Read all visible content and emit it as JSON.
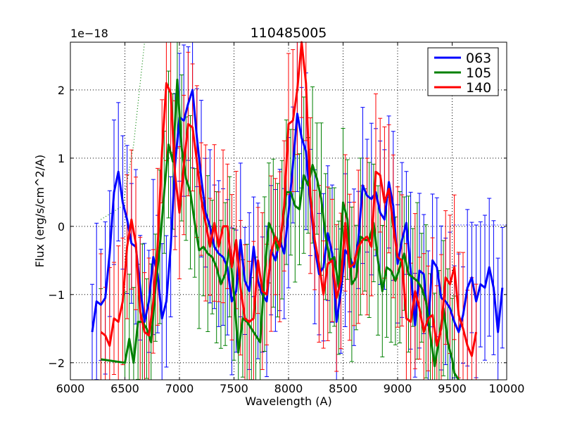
{
  "chart_data": {
    "type": "line",
    "title": "110485005",
    "xlabel": "Wavelength (A)",
    "ylabel": "Flux (erg/s/cm^2/A)",
    "y_scale_label": "1e−18",
    "xlim": [
      6000,
      10000
    ],
    "ylim": [
      -2.25,
      2.7
    ],
    "xticks": [
      6000,
      6500,
      7000,
      7500,
      8000,
      8500,
      9000,
      9500,
      10000
    ],
    "yticks": [
      -2,
      -1,
      0,
      1,
      2
    ],
    "ytick_labels": [
      "−2",
      "−1",
      "0",
      "1",
      "2"
    ],
    "grid": true,
    "legend_position": "top-right",
    "series": [
      {
        "name": "063",
        "color": "#0000ff",
        "points": [
          [
            6200,
            -1.55
          ],
          [
            6240,
            -1.1
          ],
          [
            6280,
            -1.15
          ],
          [
            6320,
            -1.05
          ],
          [
            6360,
            -0.4
          ],
          [
            6400,
            0.5
          ],
          [
            6440,
            0.8
          ],
          [
            6480,
            0.35
          ],
          [
            6520,
            0.1
          ],
          [
            6560,
            -0.25
          ],
          [
            6600,
            -0.3
          ],
          [
            6640,
            -0.9
          ],
          [
            6680,
            -1.4
          ],
          [
            6720,
            -1.1
          ],
          [
            6760,
            -0.45
          ],
          [
            6800,
            -0.7
          ],
          [
            6840,
            -1.35
          ],
          [
            6880,
            -1.1
          ],
          [
            6920,
            -0.3
          ],
          [
            6960,
            0.9
          ],
          [
            7000,
            1.6
          ],
          [
            7040,
            1.55
          ],
          [
            7080,
            1.8
          ],
          [
            7120,
            2.0
          ],
          [
            7160,
            1.3
          ],
          [
            7200,
            0.7
          ],
          [
            7240,
            0.2
          ],
          [
            7280,
            0.0
          ],
          [
            7320,
            -0.3
          ],
          [
            7360,
            -0.4
          ],
          [
            7400,
            -0.45
          ],
          [
            7440,
            -0.6
          ],
          [
            7480,
            -1.1
          ],
          [
            7520,
            -0.95
          ],
          [
            7560,
            -0.2
          ],
          [
            7600,
            -0.8
          ],
          [
            7640,
            -0.95
          ],
          [
            7680,
            -0.3
          ],
          [
            7720,
            -0.8
          ],
          [
            7760,
            -1.0
          ],
          [
            7800,
            -1.1
          ],
          [
            7840,
            -0.35
          ],
          [
            7880,
            -0.5
          ],
          [
            7920,
            -0.2
          ],
          [
            7960,
            -0.4
          ],
          [
            8000,
            0.2
          ],
          [
            8040,
            0.9
          ],
          [
            8080,
            1.65
          ],
          [
            8120,
            1.3
          ],
          [
            8160,
            1.1
          ],
          [
            8200,
            0.35
          ],
          [
            8240,
            -0.3
          ],
          [
            8280,
            -0.7
          ],
          [
            8320,
            -0.6
          ],
          [
            8360,
            -0.1
          ],
          [
            8400,
            -0.4
          ],
          [
            8440,
            -1.4
          ],
          [
            8480,
            -0.95
          ],
          [
            8520,
            -0.35
          ],
          [
            8560,
            -0.45
          ],
          [
            8600,
            -0.6
          ],
          [
            8640,
            -0.2
          ],
          [
            8680,
            0.6
          ],
          [
            8720,
            0.45
          ],
          [
            8760,
            0.4
          ],
          [
            8800,
            0.5
          ],
          [
            8840,
            0.2
          ],
          [
            8880,
            0.1
          ],
          [
            8920,
            0.65
          ],
          [
            8960,
            0.3
          ],
          [
            9000,
            -0.55
          ],
          [
            9040,
            -0.2
          ],
          [
            9080,
            0.05
          ],
          [
            9120,
            -0.65
          ],
          [
            9160,
            -1.45
          ],
          [
            9200,
            -0.65
          ],
          [
            9240,
            -0.7
          ],
          [
            9280,
            -1.45
          ],
          [
            9320,
            -0.5
          ],
          [
            9360,
            -0.6
          ],
          [
            9400,
            -1.05
          ],
          [
            9440,
            -1.1
          ],
          [
            9480,
            -1.2
          ],
          [
            9520,
            -1.4
          ],
          [
            9560,
            -1.55
          ],
          [
            9600,
            -1.3
          ],
          [
            9640,
            -0.9
          ],
          [
            9680,
            -0.75
          ],
          [
            9720,
            -1.1
          ],
          [
            9760,
            -0.85
          ],
          [
            9800,
            -0.9
          ],
          [
            9840,
            -0.6
          ],
          [
            9880,
            -0.9
          ],
          [
            9920,
            -1.55
          ],
          [
            9960,
            -0.9
          ]
        ]
      },
      {
        "name": "105",
        "color": "#008000",
        "points": [
          [
            6280,
            -1.95
          ],
          [
            6500,
            -2.0
          ],
          [
            6540,
            -1.65
          ],
          [
            6580,
            -2.0
          ],
          [
            6620,
            -1.4
          ],
          [
            6660,
            -1.4
          ],
          [
            6700,
            -1.5
          ],
          [
            6740,
            -1.7
          ],
          [
            6780,
            -0.9
          ],
          [
            6820,
            -0.3
          ],
          [
            6860,
            0.5
          ],
          [
            6900,
            1.2
          ],
          [
            6940,
            0.95
          ],
          [
            6980,
            2.15
          ],
          [
            7020,
            1.15
          ],
          [
            7060,
            0.7
          ],
          [
            7100,
            0.5
          ],
          [
            7140,
            0.05
          ],
          [
            7180,
            -0.35
          ],
          [
            7220,
            -0.3
          ],
          [
            7260,
            -0.4
          ],
          [
            7300,
            -0.45
          ],
          [
            7340,
            -0.6
          ],
          [
            7380,
            -0.85
          ],
          [
            7420,
            -0.7
          ],
          [
            7460,
            -0.3
          ],
          [
            7500,
            -1.0
          ],
          [
            7540,
            -1.85
          ],
          [
            7580,
            -1.35
          ],
          [
            7620,
            -1.4
          ],
          [
            7660,
            -1.5
          ],
          [
            7700,
            -1.6
          ],
          [
            7740,
            -1.7
          ],
          [
            7780,
            -0.7
          ],
          [
            7820,
            0.05
          ],
          [
            7860,
            -0.1
          ],
          [
            7900,
            -0.35
          ],
          [
            7940,
            -0.05
          ],
          [
            7980,
            0.5
          ],
          [
            8020,
            0.5
          ],
          [
            8060,
            0.3
          ],
          [
            8100,
            0.25
          ],
          [
            8140,
            0.75
          ],
          [
            8180,
            0.6
          ],
          [
            8220,
            0.9
          ],
          [
            8260,
            0.7
          ],
          [
            8300,
            0.4
          ],
          [
            8340,
            -0.15
          ],
          [
            8380,
            -0.5
          ],
          [
            8420,
            -0.45
          ],
          [
            8460,
            -0.9
          ],
          [
            8500,
            0.35
          ],
          [
            8540,
            0.1
          ],
          [
            8580,
            -0.85
          ],
          [
            8620,
            -0.75
          ],
          [
            8660,
            -0.15
          ],
          [
            8700,
            -0.2
          ],
          [
            8740,
            -0.2
          ],
          [
            8780,
            0.05
          ],
          [
            8820,
            -0.5
          ],
          [
            8860,
            -0.95
          ],
          [
            8900,
            -0.6
          ],
          [
            8940,
            -0.65
          ],
          [
            8980,
            -0.8
          ],
          [
            9020,
            -0.6
          ],
          [
            9060,
            -0.4
          ],
          [
            9100,
            -0.7
          ],
          [
            9140,
            -0.75
          ],
          [
            9180,
            -0.8
          ],
          [
            9220,
            -0.9
          ],
          [
            9260,
            -1.1
          ],
          [
            9300,
            -1.6
          ],
          [
            9340,
            -2.05
          ],
          [
            9380,
            -1.65
          ],
          [
            9420,
            -1.2
          ],
          [
            9460,
            -1.7
          ],
          [
            9500,
            -1.95
          ],
          [
            9520,
            -2.15
          ],
          [
            9560,
            -2.3
          ]
        ]
      },
      {
        "name": "140",
        "color": "#ff0000",
        "points": [
          [
            6280,
            -1.55
          ],
          [
            6320,
            -1.6
          ],
          [
            6360,
            -1.75
          ],
          [
            6400,
            -1.35
          ],
          [
            6440,
            -1.4
          ],
          [
            6480,
            -1.1
          ],
          [
            6520,
            -0.3
          ],
          [
            6560,
            0.1
          ],
          [
            6600,
            -0.25
          ],
          [
            6640,
            -1.25
          ],
          [
            6680,
            -1.55
          ],
          [
            6720,
            -1.6
          ],
          [
            6760,
            -1.1
          ],
          [
            6800,
            -0.3
          ],
          [
            6840,
            1.1
          ],
          [
            6880,
            2.1
          ],
          [
            6920,
            1.95
          ],
          [
            6960,
            0.75
          ],
          [
            7000,
            0.2
          ],
          [
            7040,
            0.9
          ],
          [
            7080,
            1.5
          ],
          [
            7120,
            1.45
          ],
          [
            7160,
            0.95
          ],
          [
            7200,
            0.4
          ],
          [
            7240,
            0.05
          ],
          [
            7280,
            -0.3
          ],
          [
            7320,
            0.05
          ],
          [
            7360,
            -0.3
          ],
          [
            7400,
            0.0
          ],
          [
            7440,
            0.0
          ],
          [
            7480,
            -0.6
          ],
          [
            7520,
            -0.2
          ],
          [
            7560,
            -0.9
          ],
          [
            7600,
            -1.35
          ],
          [
            7640,
            -1.4
          ],
          [
            7680,
            -1.35
          ],
          [
            7720,
            -0.5
          ],
          [
            7760,
            -0.95
          ],
          [
            7800,
            -1.0
          ],
          [
            7840,
            -0.4
          ],
          [
            7880,
            -0.15
          ],
          [
            7920,
            -0.3
          ],
          [
            7960,
            0.3
          ],
          [
            8000,
            1.5
          ],
          [
            8040,
            1.55
          ],
          [
            8080,
            2.0
          ],
          [
            8120,
            2.7
          ],
          [
            8160,
            2.1
          ],
          [
            8200,
            0.45
          ],
          [
            8240,
            -0.2
          ],
          [
            8280,
            -0.55
          ],
          [
            8320,
            -1.0
          ],
          [
            8360,
            -0.55
          ],
          [
            8400,
            -0.5
          ],
          [
            8440,
            -1.05
          ],
          [
            8480,
            -0.8
          ],
          [
            8520,
            0.05
          ],
          [
            8560,
            -0.6
          ],
          [
            8600,
            -0.55
          ],
          [
            8640,
            -0.3
          ],
          [
            8680,
            -0.2
          ],
          [
            8720,
            -0.15
          ],
          [
            8760,
            -0.3
          ],
          [
            8800,
            0.8
          ],
          [
            8840,
            0.75
          ],
          [
            8880,
            0.35
          ],
          [
            8920,
            0.55
          ],
          [
            8960,
            0.0
          ],
          [
            9000,
            -0.45
          ],
          [
            9040,
            -0.5
          ],
          [
            9080,
            -1.35
          ],
          [
            9120,
            -1.4
          ],
          [
            9160,
            -0.95
          ],
          [
            9200,
            -1.2
          ],
          [
            9240,
            -1.55
          ],
          [
            9280,
            -1.35
          ],
          [
            9320,
            -1.3
          ],
          [
            9360,
            -1.75
          ],
          [
            9400,
            -1.5
          ],
          [
            9440,
            -0.75
          ],
          [
            9480,
            -0.85
          ],
          [
            9520,
            -0.6
          ],
          [
            9560,
            -1.3
          ],
          [
            9600,
            -1.5
          ],
          [
            9640,
            -1.75
          ],
          [
            9680,
            -1.9
          ],
          [
            9720,
            -1.55
          ]
        ]
      }
    ],
    "reference_lines": [
      {
        "name": "green-dotted-line",
        "color": "#008000",
        "points": [
          [
            6280,
            0.1
          ],
          [
            6480,
            0.3
          ],
          [
            6580,
            1.2
          ],
          [
            6680,
            2.7
          ]
        ]
      },
      {
        "name": "blue-dotted-line",
        "color": "#0000ff",
        "points": [
          [
            9500,
            0.02
          ],
          [
            10000,
            0.02
          ]
        ]
      }
    ]
  }
}
